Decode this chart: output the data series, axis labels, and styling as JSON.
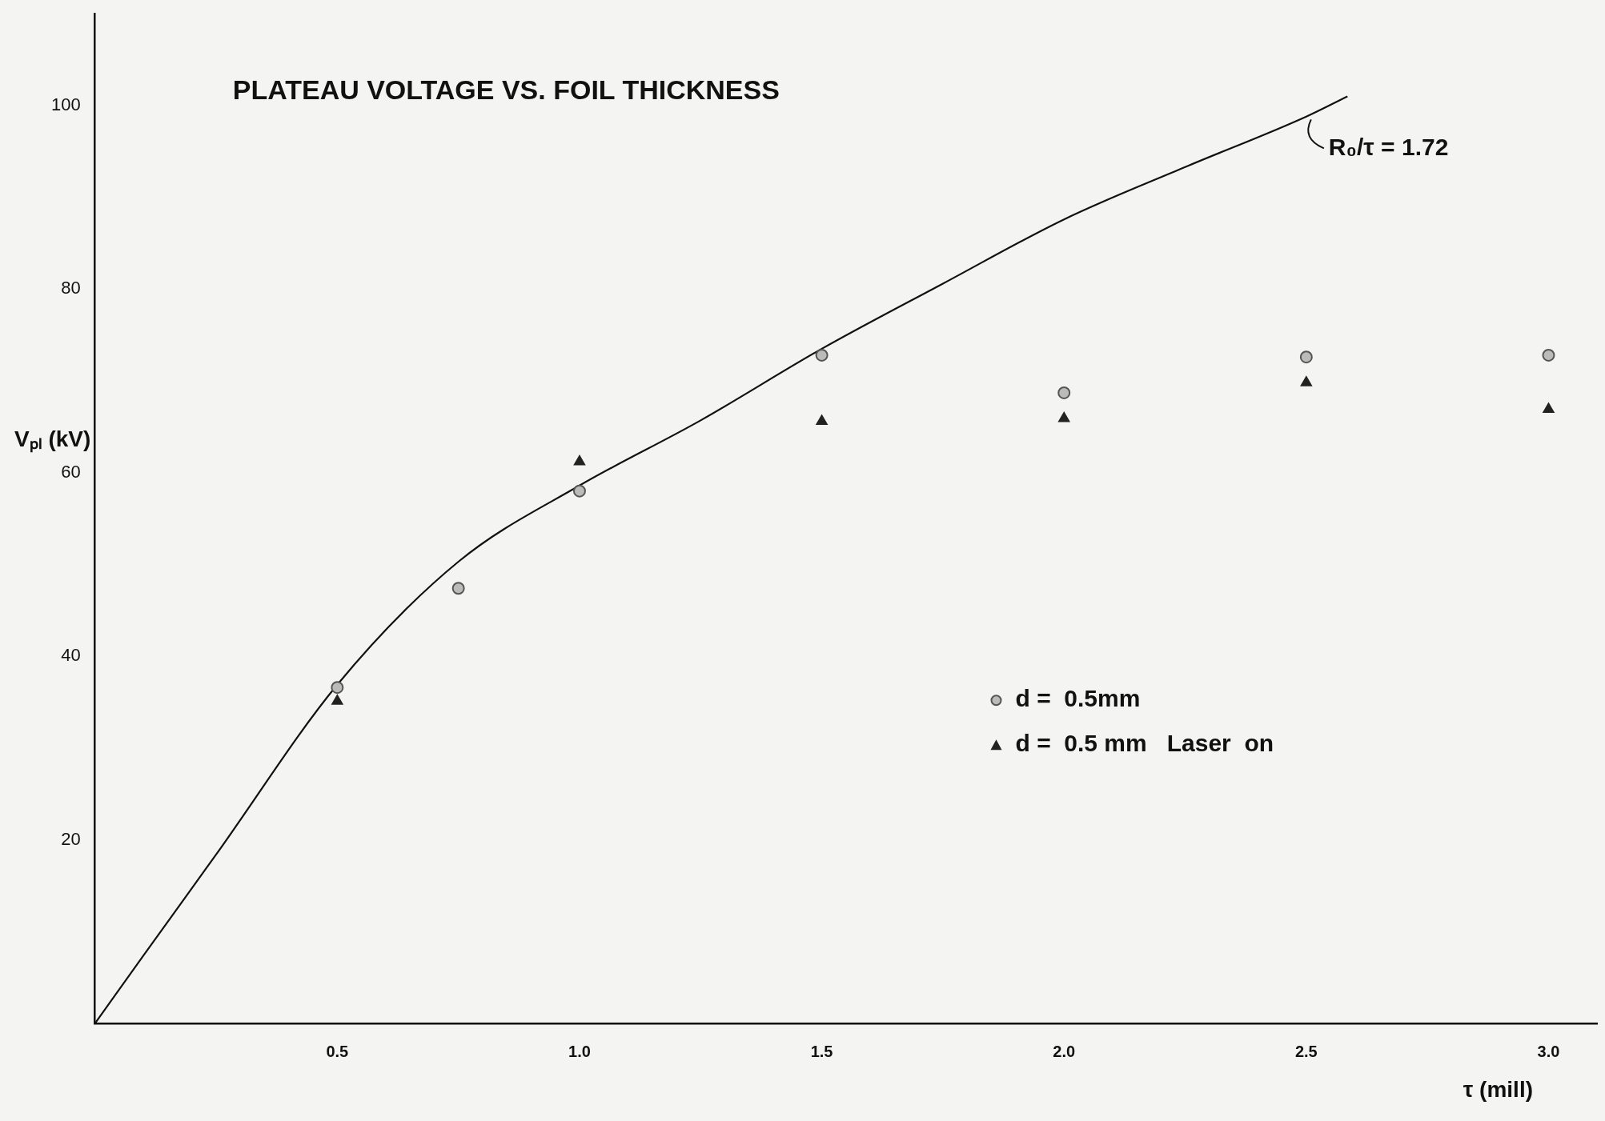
{
  "chart_data": {
    "type": "scatter",
    "title": "PLATEAU VOLTAGE VS. FOIL THICKNESS",
    "xlabel": "τ (mill)",
    "ylabel": "Vₚₗ (kV)",
    "xlim": [
      0,
      3.1
    ],
    "ylim": [
      0,
      110
    ],
    "xticks": [
      {
        "value": 0.5,
        "label": "0.5"
      },
      {
        "value": 1,
        "label": "1.0"
      },
      {
        "value": 1.5,
        "label": "1.5"
      },
      {
        "value": 2,
        "label": "2.0"
      },
      {
        "value": 2.5,
        "label": "2.5"
      },
      {
        "value": 3,
        "label": "3.0"
      }
    ],
    "yticks": [
      20,
      40,
      60,
      80,
      100
    ],
    "grid": false,
    "legend": "bottom right",
    "annotations": [
      {
        "text": "R₀/τ = 1.72",
        "x": 2.5,
        "y": 99
      }
    ],
    "series": [
      {
        "name": "d =  0.5mm",
        "color": "#555555",
        "marker": "circle",
        "x": [
          0.5,
          0.75,
          1,
          1.5,
          2,
          2.5,
          3
        ],
        "values": [
          36.6,
          47.4,
          58.0,
          72.8,
          68.7,
          72.6,
          72.8
        ]
      },
      {
        "name": "d =  0.5 mm   Laser  on",
        "color": "#222222",
        "marker": "triangle",
        "x": [
          0.5,
          1,
          1.5,
          2,
          2.5,
          3
        ],
        "values": [
          35.1,
          61.2,
          65.6,
          65.9,
          69.8,
          66.9
        ]
      },
      {
        "type": "line",
        "color": "#111111",
        "marker": "none",
        "x": [
          0,
          0.1,
          0.25,
          0.5,
          0.75,
          1,
          1.25,
          1.5,
          1.75,
          2,
          2.25,
          2.5,
          2.585
        ],
        "values": [
          0,
          7.4,
          18.4,
          36.9,
          50.3,
          58.6,
          65.7,
          73.5,
          80.6,
          87.6,
          93.3,
          98.8,
          101
        ]
      }
    ]
  }
}
